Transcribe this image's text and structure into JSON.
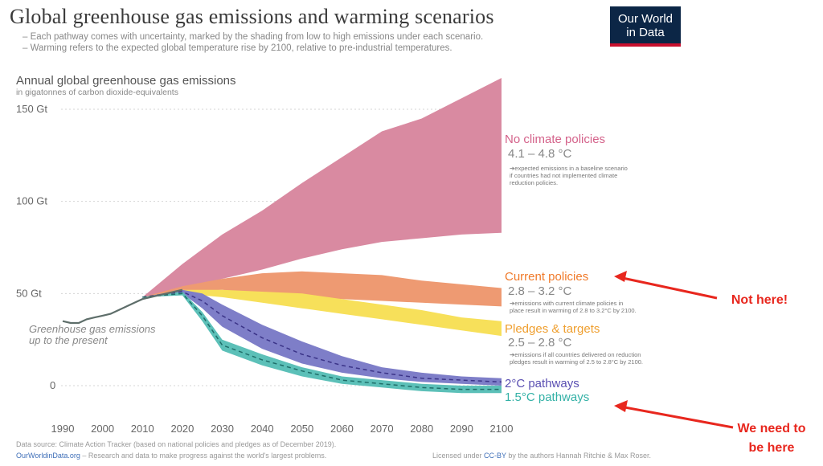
{
  "title": "Global greenhouse gas emissions and warming scenarios",
  "subtitle_lines": [
    "– Each pathway comes with uncertainty, marked by the shading from low to high emissions under each scenario.",
    "– Warming refers to the expected global temperature rise by 2100, relative to pre-industrial temperatures."
  ],
  "logo": {
    "line1": "Our World",
    "line2": "in Data",
    "bg": "#0c2646",
    "accent": "#c8102e"
  },
  "footer": {
    "source": "Data source: Climate Action Tracker (based on national policies and pledges as of December 2019).",
    "site": "OurWorldinData.org",
    "tagline": " – Research and data to make progress against the world's largest problems.",
    "license_pre": "Licensed under ",
    "license_link": "CC-BY",
    "license_post": " by the authors Hannah Ritchie & Max Roser."
  },
  "callouts": {
    "not_here": "Not here!",
    "need_line1": "We need to",
    "need_line2": "be here",
    "color": "#e8271e"
  },
  "chart_data": {
    "type": "area",
    "title": "Annual global greenhouse gas emissions",
    "subtitle": "in gigatonnes of carbon dioxide-equivalents",
    "xlim": [
      1990,
      2100
    ],
    "ylim": [
      0,
      150
    ],
    "x_ticks": [
      1990,
      2000,
      2010,
      2020,
      2030,
      2040,
      2050,
      2060,
      2070,
      2080,
      2090,
      2100
    ],
    "y_ticks": [
      {
        "value": 0,
        "label": "0"
      },
      {
        "value": 50,
        "label": "50 Gt"
      },
      {
        "value": 100,
        "label": "100 Gt"
      },
      {
        "value": 150,
        "label": "150 Gt"
      }
    ],
    "historical": {
      "name": "Greenhouse gas emissions up to the present",
      "color": "#5e6e6a",
      "x": [
        1990,
        1992,
        1994,
        1996,
        1998,
        2000,
        2002,
        2004,
        2006,
        2008,
        2010,
        2012,
        2014,
        2016,
        2018,
        2020
      ],
      "y": [
        35,
        34,
        34,
        36,
        37,
        38,
        39,
        41,
        43,
        45,
        47,
        48,
        49,
        50,
        51,
        52
      ]
    },
    "pathways": [
      {
        "name": "No climate policies",
        "warming": "4.1 – 4.8 °C",
        "note": [
          "➔expected emissions in a baseline scenario",
          "if countries had not implemented climate",
          "reduction policies."
        ],
        "color": "#d98aa1",
        "label_color": "#d4628a",
        "x": [
          2010,
          2020,
          2030,
          2040,
          2050,
          2060,
          2070,
          2080,
          2090,
          2100
        ],
        "low": [
          48,
          52,
          58,
          63,
          69,
          74,
          78,
          80,
          82,
          83
        ],
        "high": [
          48,
          66,
          82,
          95,
          110,
          124,
          138,
          145,
          156,
          167
        ]
      },
      {
        "name": "Current policies",
        "warming": "2.8 – 3.2 °C",
        "note": [
          "➔emissions with current climate policies in",
          "place result in warming of 2.8 to 3.2°C by 2100."
        ],
        "color": "#ee9a72",
        "label_color": "#f07a2a",
        "x": [
          2010,
          2020,
          2030,
          2040,
          2050,
          2060,
          2070,
          2080,
          2090,
          2100
        ],
        "low": [
          48,
          51,
          52,
          50,
          48,
          47,
          46,
          45,
          44,
          43
        ],
        "high": [
          48,
          54,
          58,
          61,
          62,
          61,
          60,
          57,
          55,
          53
        ]
      },
      {
        "name": "Pledges & targets",
        "warming": "2.5 – 2.8 °C",
        "note": [
          "➔emissions if all countries delivered on reduction",
          "pledges result in warming of 2.5 to 2.8°C by 2100."
        ],
        "color": "#f7e05a",
        "label_color": "#ef9f2f",
        "x": [
          2010,
          2020,
          2030,
          2040,
          2050,
          2060,
          2070,
          2080,
          2090,
          2100
        ],
        "low": [
          48,
          50,
          48,
          45,
          42,
          39,
          36,
          33,
          30,
          27
        ],
        "high": [
          48,
          52,
          52,
          51,
          50,
          47,
          44,
          41,
          37,
          35
        ]
      },
      {
        "name": "2°C pathways",
        "warming": "",
        "note": [],
        "color": "#7e7ec8",
        "label_color": "#5a4fb2",
        "x": [
          2010,
          2020,
          2025,
          2030,
          2040,
          2050,
          2060,
          2070,
          2080,
          2090,
          2100
        ],
        "low": [
          48,
          50,
          42,
          32,
          20,
          12,
          7,
          4,
          2,
          1,
          0
        ],
        "high": [
          48,
          52,
          50,
          44,
          33,
          24,
          16,
          10,
          7,
          5,
          4
        ],
        "mid": [
          48,
          51,
          46,
          38,
          26,
          17,
          11,
          7,
          4,
          3,
          2
        ]
      },
      {
        "name": "1.5°C pathways",
        "warming": "",
        "note": [],
        "color": "#5cc0b8",
        "label_color": "#33b1a6",
        "x": [
          2010,
          2020,
          2025,
          2030,
          2040,
          2050,
          2060,
          2070,
          2080,
          2090,
          2100
        ],
        "low": [
          48,
          49,
          35,
          19,
          11,
          5,
          1,
          -1,
          -3,
          -4,
          -4
        ],
        "high": [
          48,
          51,
          40,
          25,
          17,
          10,
          5,
          3,
          1,
          0,
          0
        ],
        "mid": [
          48,
          50,
          38,
          22,
          14,
          8,
          3,
          1,
          -1,
          -2,
          -2
        ]
      }
    ]
  }
}
